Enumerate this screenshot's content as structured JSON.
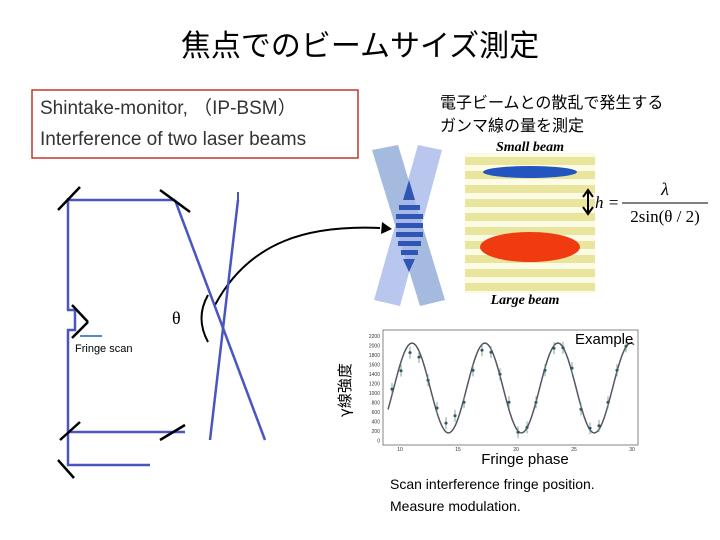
{
  "title": "焦点でのビームサイズ測定",
  "box": {
    "line1": "Shintake-monitor, （IP-BSM）",
    "line2": "Interference of two laser beams"
  },
  "note": {
    "line1": "電子ビームとの散乱で発生する",
    "line2": "ガンマ線の量を測定"
  },
  "fringe": {
    "small": "Small beam",
    "large": "Large beam"
  },
  "formula": {
    "lhs": "h =",
    "numerator": "λ",
    "denominator": "2sin(θ / 2)"
  },
  "optics": {
    "angle": "θ",
    "scan": "Fringe scan"
  },
  "plot": {
    "ylabel": "γ線強度",
    "example": "Example",
    "xlabel": "Fringe phase",
    "xticks": [
      "10",
      "15",
      "20",
      "25",
      "30"
    ],
    "yticks": [
      "2200",
      "2000",
      "1800",
      "1600",
      "1400",
      "1200",
      "1000",
      "800",
      "600",
      "400",
      "200",
      "0"
    ]
  },
  "caption": {
    "line1": "Scan interference fringe position.",
    "line2": "Measure modulation."
  }
}
